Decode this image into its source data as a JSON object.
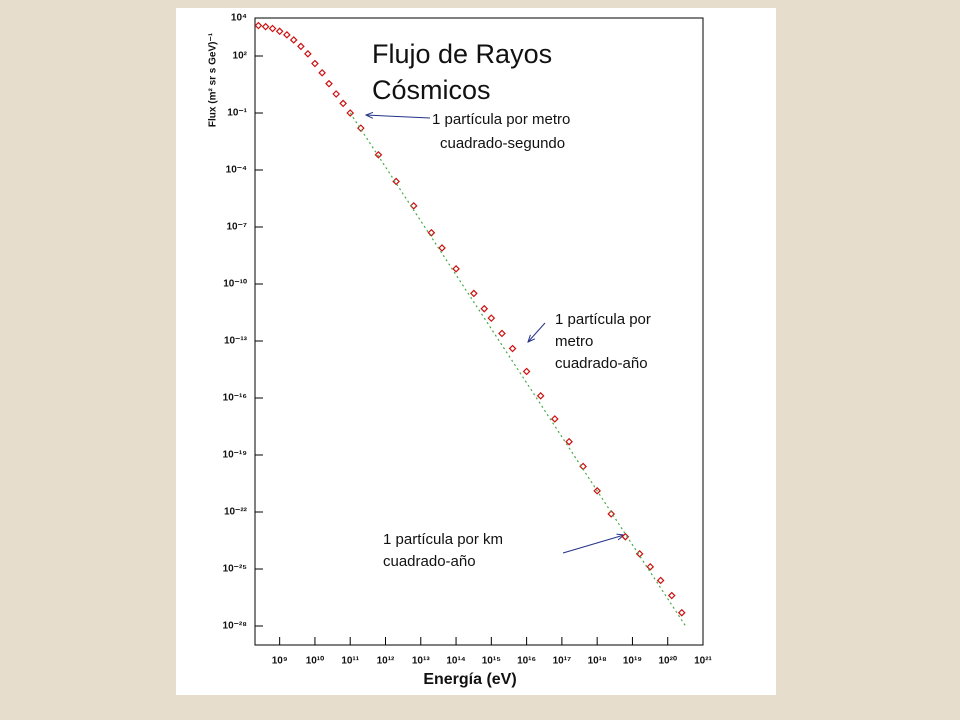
{
  "chart_data": {
    "type": "scatter",
    "title": [
      "Flujo de Rayos",
      "Cósmicos"
    ],
    "x_label": "Energía (eV)",
    "y_label": "Flux (m² sr s GeV)⁻¹",
    "x_log": true,
    "y_log": true,
    "xlim": [
      200000000.0,
      1e+21
    ],
    "ylim": [
      1e-29,
      10000.0
    ],
    "xticks": [
      {
        "value": 1000000000.0,
        "label": "10⁹"
      },
      {
        "value": 10000000000.0,
        "label": "10¹⁰"
      },
      {
        "value": 100000000000.0,
        "label": "10¹¹"
      },
      {
        "value": 1000000000000.0,
        "label": "10¹²"
      },
      {
        "value": 10000000000000.0,
        "label": "10¹³"
      },
      {
        "value": 100000000000000.0,
        "label": "10¹⁴"
      },
      {
        "value": 1000000000000000.0,
        "label": "10¹⁵"
      },
      {
        "value": 1e+16,
        "label": "10¹⁶"
      },
      {
        "value": 1e+17,
        "label": "10¹⁷"
      },
      {
        "value": 1e+18,
        "label": "10¹⁸"
      },
      {
        "value": 1e+19,
        "label": "10¹⁹"
      },
      {
        "value": 1e+20,
        "label": "10²⁰"
      },
      {
        "value": 1e+21,
        "label": "10²¹"
      }
    ],
    "yticks": [
      {
        "value": 10000.0,
        "label": "10⁴"
      },
      {
        "value": 100.0,
        "label": "10²"
      },
      {
        "value": 0.1,
        "label": "10⁻¹"
      },
      {
        "value": 0.0001,
        "label": "10⁻⁴"
      },
      {
        "value": 1e-07,
        "label": "10⁻⁷"
      },
      {
        "value": 1e-10,
        "label": "10⁻¹⁰"
      },
      {
        "value": 1e-13,
        "label": "10⁻¹³"
      },
      {
        "value": 1e-16,
        "label": "10⁻¹⁶"
      },
      {
        "value": 1e-19,
        "label": "10⁻¹⁹"
      },
      {
        "value": 1e-22,
        "label": "10⁻²²"
      },
      {
        "value": 1e-25,
        "label": "10⁻²⁵"
      },
      {
        "value": 1e-28,
        "label": "10⁻²⁸"
      }
    ],
    "series": [
      {
        "color": "#cc1111",
        "x": [
          250000000.0,
          400000000.0,
          630000000.0,
          1000000000.0,
          1600000000.0,
          2500000000.0,
          4000000000.0,
          6300000000.0,
          10000000000.0,
          16000000000.0,
          25000000000.0,
          40000000000.0,
          63000000000.0,
          100000000000.0,
          200000000000.0,
          630000000000.0,
          2000000000000.0,
          6300000000000.0,
          20000000000000.0,
          40000000000000.0,
          100000000000000.0,
          320000000000000.0,
          630000000000000.0,
          1000000000000000.0,
          2000000000000000.0,
          4000000000000000.0,
          1e+16,
          2.5e+16,
          6.3e+16,
          1.6e+17,
          4e+17,
          1e+18,
          2.5e+18,
          6.3e+18,
          1.6e+19,
          3.2e+19,
          6.3e+19,
          1.3e+20,
          2.5e+20
        ],
        "values": [
          4000.0,
          3500.0,
          2800.0,
          2000.0,
          1300.0,
          700.0,
          320.0,
          130.0,
          40,
          13,
          3.5,
          1,
          0.32,
          0.1,
          0.016,
          0.00063,
          2.5e-05,
          1.3e-06,
          5e-08,
          7.9e-09,
          6.3e-10,
          3.2e-11,
          5e-12,
          1.6e-12,
          2.5e-13,
          4e-14,
          2.5e-15,
          1.3e-16,
          7.9e-18,
          5e-19,
          2.5e-20,
          1.3e-21,
          7.9e-23,
          5e-24,
          6.3e-25,
          1.3e-25,
          2.5e-26,
          4e-27,
          5e-28
        ]
      },
      {
        "color": "#44aa44",
        "dashed": true,
        "x": [
          100000000000.0,
          3.2e+20
        ],
        "values": [
          0.1,
          1e-28
        ]
      }
    ],
    "annotations": [
      {
        "text": [
          "1 partícula por metro",
          "cuadrado-segundo"
        ]
      },
      {
        "text": [
          "1 partícula por",
          "metro",
          "cuadrado-año"
        ]
      },
      {
        "text": [
          "1 partícula por km",
          "cuadrado-año"
        ]
      }
    ]
  }
}
